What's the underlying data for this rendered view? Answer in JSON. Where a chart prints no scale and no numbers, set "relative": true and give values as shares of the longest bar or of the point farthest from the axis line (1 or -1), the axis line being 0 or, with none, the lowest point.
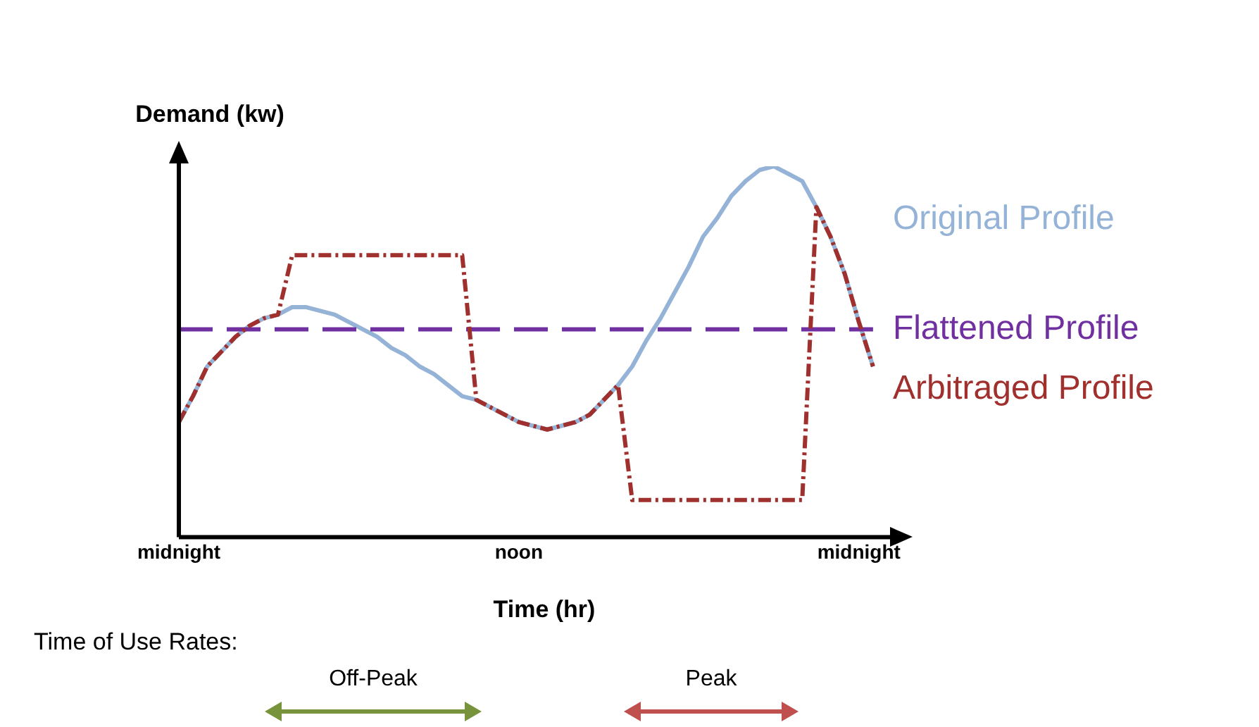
{
  "chart_data": {
    "type": "line",
    "relative": true,
    "xlabel": "Time (hr)",
    "ylabel": "Demand (kw)",
    "categories": [
      "midnight",
      null,
      null,
      null,
      null,
      null,
      null,
      null,
      null,
      null,
      null,
      null,
      null,
      null,
      null,
      null,
      null,
      null,
      null,
      null,
      null,
      null,
      null,
      null,
      "noon",
      null,
      null,
      null,
      null,
      null,
      null,
      null,
      null,
      null,
      null,
      null,
      null,
      null,
      null,
      null,
      null,
      null,
      null,
      null,
      null,
      null,
      null,
      null,
      "midnight",
      null,
      null
    ],
    "legend": false,
    "grid": false,
    "marker": "none",
    "series": [
      {
        "name": "Original Profile",
        "color": "#95b3d7",
        "line_style": "solid",
        "values": [
          0.31,
          0.38,
          0.46,
          0.5,
          0.54,
          0.57,
          0.59,
          0.6,
          0.62,
          0.62,
          0.61,
          0.6,
          0.58,
          0.56,
          0.54,
          0.51,
          0.49,
          0.46,
          0.44,
          0.41,
          0.38,
          0.37,
          0.35,
          0.33,
          0.31,
          0.3,
          0.29,
          0.3,
          0.31,
          0.33,
          0.37,
          0.41,
          0.46,
          0.53,
          0.59,
          0.66,
          0.73,
          0.81,
          0.86,
          0.92,
          0.96,
          0.99,
          1,
          0.98,
          0.96,
          0.89,
          0.81,
          0.71,
          0.58,
          0.46,
          null
        ]
      },
      {
        "name": "Flattened Profile",
        "color": "#7030a0",
        "line_style": "dashed",
        "values": [
          0.56,
          0.56,
          0.56,
          0.56,
          0.56,
          0.56,
          0.56,
          0.56,
          0.56,
          0.56,
          0.56,
          0.56,
          0.56,
          0.56,
          0.56,
          0.56,
          0.56,
          0.56,
          0.56,
          0.56,
          0.56,
          0.56,
          0.56,
          0.56,
          0.56,
          0.56,
          0.56,
          0.56,
          0.56,
          0.56,
          0.56,
          0.56,
          0.56,
          0.56,
          0.56,
          0.56,
          0.56,
          0.56,
          0.56,
          0.56,
          0.56,
          0.56,
          0.56,
          0.56,
          0.56,
          0.56,
          0.56,
          0.56,
          0.56,
          0.56,
          null
        ]
      },
      {
        "name": "Arbitraged Profile",
        "color": "#a0302d",
        "line_style": "dashdot",
        "values": [
          0.31,
          0.38,
          0.46,
          0.5,
          0.54,
          0.57,
          0.59,
          0.6,
          0.76,
          0.76,
          0.76,
          0.76,
          0.76,
          0.76,
          0.76,
          0.76,
          0.76,
          0.76,
          0.76,
          0.76,
          0.76,
          0.37,
          0.35,
          0.33,
          0.31,
          0.3,
          0.29,
          0.3,
          0.31,
          0.33,
          0.37,
          0.41,
          0.1,
          0.1,
          0.1,
          0.1,
          0.1,
          0.1,
          0.1,
          0.1,
          0.1,
          0.1,
          0.1,
          0.1,
          0.1,
          0.89,
          0.81,
          0.71,
          0.58,
          0.46,
          null
        ]
      }
    ],
    "annotations": [
      "Time of Use Rates:",
      "Off-Peak",
      "Peak"
    ]
  }
}
